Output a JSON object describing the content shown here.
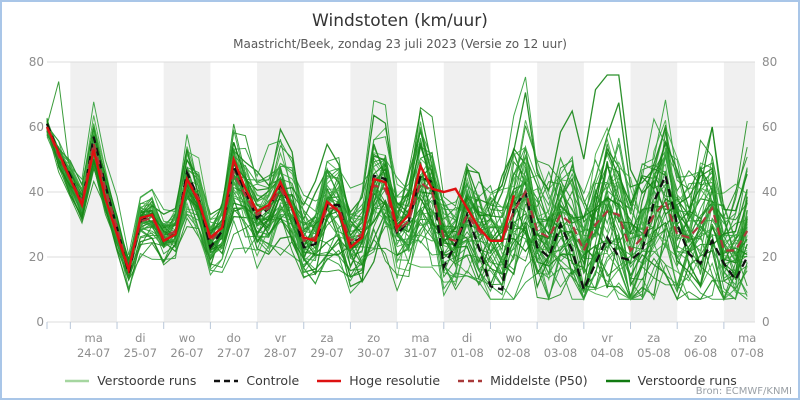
{
  "window": {
    "title": "Windstoten (km/uur)",
    "subtitle": "Maastricht/Beek, zondag 23 juli 2023 (Versie zo 12 uur)",
    "source": "Bron: ECMWF/KNMI"
  },
  "colors": {
    "border": "#a9c6e8",
    "band": "#f0f0f0",
    "grid": "#dcdcdc",
    "tick": "#b9c7d9",
    "axis_text": "#8d8d8d",
    "control": "#111111",
    "hires": "#dd1111",
    "median": "#a93a3a",
    "ensemble_greens": [
      "#2f9e37",
      "#249024",
      "#45ad45"
    ],
    "ensemble_dark": "#158515"
  },
  "chart_data": {
    "type": "line",
    "title": "Windstoten (km/uur)",
    "subtitle": "Maastricht/Beek, zondag 23 juli 2023 (Versie zo 12 uur)",
    "ylabel": "km/uur",
    "ylim": [
      0,
      80
    ],
    "yticks": [
      0,
      20,
      40,
      60,
      80
    ],
    "x_start": "2023-07-23 12:00",
    "x_step_hours": 6,
    "n_points": 61,
    "grid": "horizontal-only",
    "day_bands_alternating": true,
    "legend_position": "bottom-center",
    "days": [
      {
        "dow": "ma",
        "date": "24-07"
      },
      {
        "dow": "di",
        "date": "25-07"
      },
      {
        "dow": "wo",
        "date": "26-07"
      },
      {
        "dow": "do",
        "date": "27-07"
      },
      {
        "dow": "vr",
        "date": "28-07"
      },
      {
        "dow": "za",
        "date": "29-07"
      },
      {
        "dow": "zo",
        "date": "30-07"
      },
      {
        "dow": "ma",
        "date": "31-07"
      },
      {
        "dow": "di",
        "date": "01-08"
      },
      {
        "dow": "wo",
        "date": "02-08"
      },
      {
        "dow": "do",
        "date": "03-08"
      },
      {
        "dow": "vr",
        "date": "04-08"
      },
      {
        "dow": "za",
        "date": "05-08"
      },
      {
        "dow": "zo",
        "date": "06-08"
      },
      {
        "dow": "ma",
        "date": "07-08"
      }
    ],
    "series": [
      {
        "name": "Controle",
        "style": "dashed",
        "color": "#111111",
        "values": [
          61,
          52,
          45,
          36,
          57,
          42,
          29,
          15,
          31,
          33,
          25,
          27,
          46,
          38,
          23,
          28,
          48,
          40,
          32,
          35,
          42,
          35,
          23,
          24,
          36,
          36,
          24,
          26,
          45,
          44,
          27,
          31,
          45,
          43,
          17,
          24,
          33,
          23,
          11,
          10,
          35,
          40,
          23,
          20,
          30,
          22,
          10,
          18,
          26,
          20,
          19,
          22,
          37,
          45,
          30,
          21,
          18,
          25,
          18,
          13,
          20
        ]
      },
      {
        "name": "Hoge resolutie",
        "style": "solid",
        "color": "#dd1111",
        "values": [
          60,
          52,
          44,
          36,
          53,
          38,
          27,
          16,
          32,
          33,
          25,
          27,
          44,
          37,
          26,
          29,
          50,
          41,
          34,
          36,
          43,
          35,
          26,
          25,
          37,
          34,
          23,
          26,
          44,
          43,
          29,
          33,
          48,
          41,
          40,
          41,
          35,
          29,
          25,
          25,
          39
        ]
      },
      {
        "name": "Middelste (P50)",
        "style": "dashed",
        "color": "#a93a3a",
        "values": [
          60,
          51,
          44,
          37,
          55,
          41,
          29,
          16,
          31,
          32,
          26,
          28,
          44,
          38,
          25,
          29,
          46,
          39,
          33,
          35,
          41,
          35,
          25,
          26,
          35,
          35,
          25,
          27,
          42,
          41,
          28,
          31,
          43,
          40,
          26,
          25,
          33,
          28,
          25,
          25,
          34,
          40,
          28,
          26,
          33,
          30,
          22,
          30,
          34,
          33,
          22,
          26,
          33,
          37,
          27,
          26,
          30,
          35,
          22,
          22,
          28
        ]
      }
    ],
    "ensemble": {
      "name": "Verstoorde runs",
      "count": 50,
      "seed": 20230723,
      "value_min": 7,
      "value_max": 76,
      "outlier": {
        "member": 7,
        "index": 1,
        "value": 74
      },
      "sigma": [
        2,
        2.5,
        3,
        3,
        3.5,
        3.5,
        4,
        4,
        4.5,
        4.5,
        5,
        5,
        5.5,
        5.5,
        6,
        6,
        6.5,
        6.5,
        7,
        7,
        7.5,
        7.5,
        8,
        8,
        8.5,
        8.5,
        9,
        9,
        9.5,
        9.5,
        10,
        10,
        10.5,
        10.5,
        11,
        11,
        11.5,
        11.5,
        12,
        12,
        12.5,
        12.5,
        13,
        13,
        13,
        13,
        13.5,
        13.5,
        14,
        14,
        14,
        14,
        14.5,
        14.5,
        15,
        15,
        15,
        15,
        15.5,
        15.5,
        16
      ]
    },
    "legend": [
      {
        "label": "Verstoorde runs",
        "color": "#a5d6a0",
        "dash": "solid"
      },
      {
        "label": "Controle",
        "color": "#111111",
        "dash": "dashed"
      },
      {
        "label": "Hoge resolutie",
        "color": "#dd1111",
        "dash": "solid"
      },
      {
        "label": "Middelste (P50)",
        "color": "#a93a3a",
        "dash": "dashed"
      },
      {
        "label": "Verstoorde runs",
        "color": "#117a11",
        "dash": "solid"
      }
    ]
  }
}
